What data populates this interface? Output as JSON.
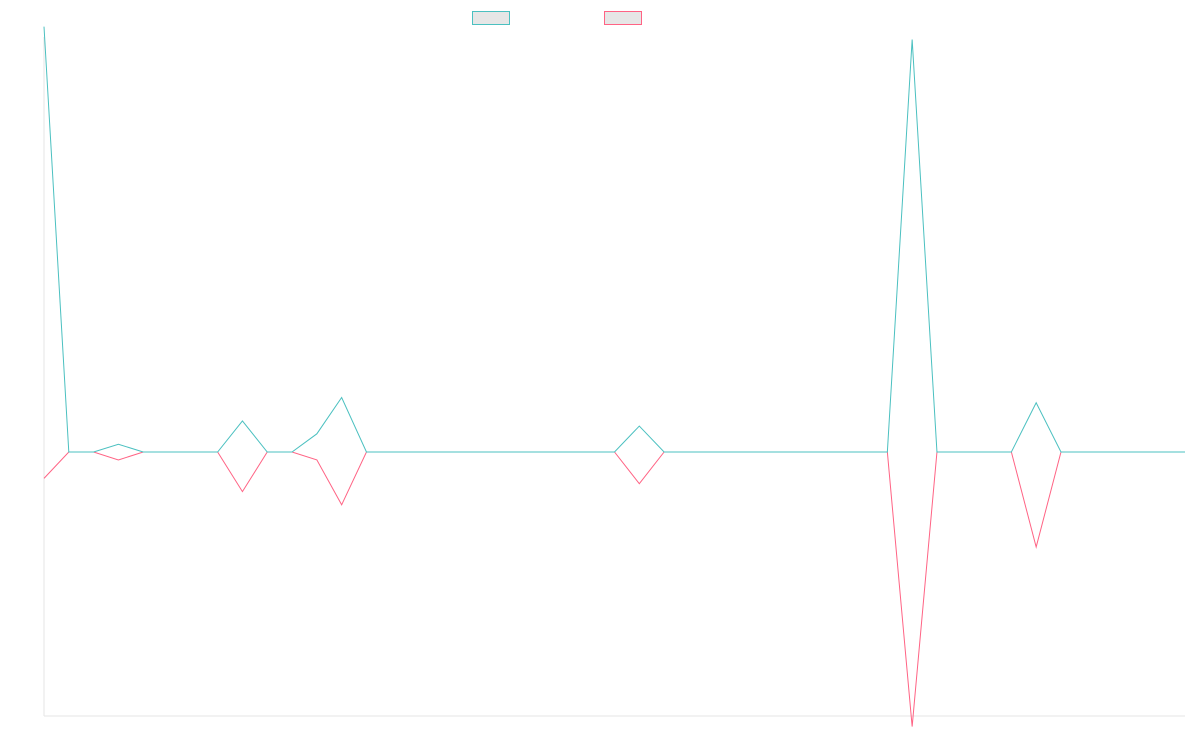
{
  "colors": {
    "teal": "#4bc0c0",
    "pink": "#ff6384",
    "axis": "#e6e6e6",
    "swatch_fill": "#e6e6e6"
  },
  "legend": [
    {
      "label": "",
      "color": "#4bc0c0"
    },
    {
      "label": "",
      "color": "#ff6384"
    }
  ],
  "chart_data": {
    "type": "line",
    "title": "",
    "xlabel": "",
    "ylabel": "",
    "grid": false,
    "legend_position": "top",
    "x_count": 47,
    "ylim": [
      -1.0,
      1.6
    ],
    "series": [
      {
        "color": "#4bc0c0",
        "values": [
          1.64,
          0,
          0,
          0.03,
          0,
          0,
          0,
          0,
          0.12,
          0,
          0,
          0.07,
          0.21,
          0,
          0,
          0,
          0,
          0,
          0,
          0,
          0,
          0,
          0,
          0,
          0.1,
          0,
          0,
          0,
          0,
          0,
          0,
          0,
          0,
          0,
          0,
          1.59,
          0,
          0,
          0,
          0,
          0.19,
          0,
          0,
          0,
          0,
          0,
          0
        ]
      },
      {
        "color": "#ff6384",
        "values": [
          -0.1,
          0,
          0,
          -0.03,
          0,
          0,
          0,
          0,
          -0.15,
          0,
          0,
          -0.03,
          -0.2,
          0,
          0,
          0,
          0,
          0,
          0,
          0,
          0,
          0,
          0,
          0,
          -0.12,
          0,
          0,
          0,
          0,
          0,
          0,
          0,
          0,
          0,
          0,
          -1.04,
          0,
          0,
          0,
          0,
          -0.36,
          0,
          0,
          0,
          0,
          0,
          0
        ]
      }
    ]
  }
}
